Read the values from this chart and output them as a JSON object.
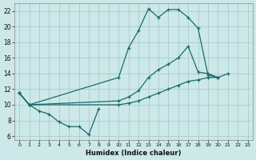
{
  "xlabel": "Humidex (Indice chaleur)",
  "xlim": [
    -0.5,
    23.5
  ],
  "ylim": [
    5.5,
    23.0
  ],
  "yticks": [
    6,
    8,
    10,
    12,
    14,
    16,
    18,
    20,
    22
  ],
  "xticks": [
    0,
    1,
    2,
    3,
    4,
    5,
    6,
    7,
    8,
    9,
    10,
    11,
    12,
    13,
    14,
    15,
    16,
    17,
    18,
    19,
    20,
    21,
    22,
    23
  ],
  "bg_color": "#cce8e8",
  "grid_color": "#aacccc",
  "line_color": "#1a6b6b",
  "line1_x": [
    0,
    1,
    2,
    3,
    4,
    5,
    6,
    7,
    8
  ],
  "line1_y": [
    11.5,
    10.0,
    9.2,
    8.8,
    7.8,
    7.2,
    7.2,
    6.2,
    9.5
  ],
  "line2_x": [
    0,
    1,
    10,
    11,
    12,
    13,
    14,
    15,
    16,
    17,
    18,
    19,
    20
  ],
  "line2_y": [
    11.5,
    10.0,
    13.5,
    17.3,
    19.5,
    22.3,
    21.2,
    22.2,
    22.2,
    21.2,
    19.8,
    13.8,
    13.5
  ],
  "line3_x": [
    0,
    1,
    10,
    11,
    12,
    13,
    14,
    15,
    16,
    17,
    18,
    19,
    20,
    21,
    22,
    23
  ],
  "line3_y": [
    11.5,
    10.0,
    10.5,
    11.0,
    11.8,
    13.5,
    14.5,
    15.2,
    16.0,
    17.5,
    14.2,
    14.0,
    13.5,
    14.0,
    null,
    null
  ],
  "line4_x": [
    0,
    1,
    10,
    11,
    12,
    13,
    14,
    15,
    16,
    17,
    18,
    19,
    20,
    21,
    22,
    23
  ],
  "line4_y": [
    11.5,
    10.0,
    10.0,
    10.2,
    10.5,
    11.0,
    11.5,
    12.0,
    12.5,
    13.0,
    13.2,
    13.5,
    13.5,
    null,
    null,
    null
  ]
}
